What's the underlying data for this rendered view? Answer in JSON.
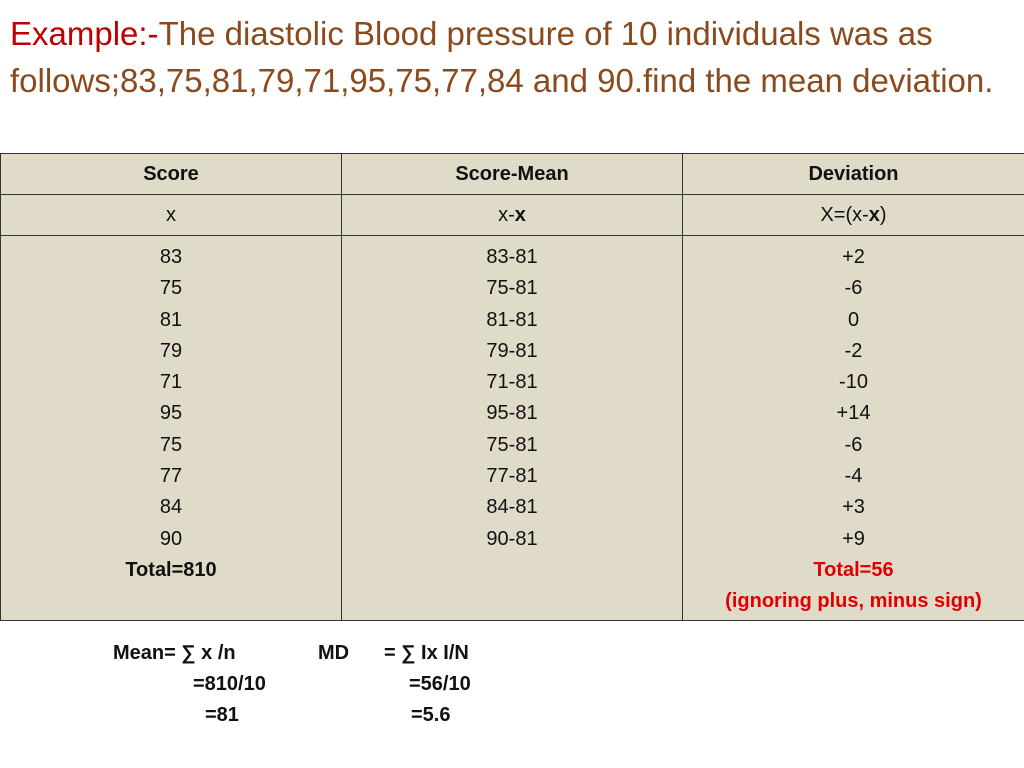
{
  "title": {
    "lead": "Example:-",
    "text": "The diastolic Blood pressure of 10 individuals was as follows;83,75,81,79,71,95,75,77,84 and 90.find the mean deviation."
  },
  "table": {
    "headers": [
      "Score",
      "Score-Mean",
      "Deviation"
    ],
    "subheaders": {
      "c1": "x",
      "c2_pre": "x-",
      "c2_bold": "x",
      "c3_pre": "X=(x-",
      "c3_bold": "x",
      "c3_post": ")"
    },
    "scores": [
      "83",
      "75",
      "81",
      "79",
      "71",
      "95",
      "75",
      "77",
      "84",
      "90"
    ],
    "score_minus_mean": [
      "83-81",
      "75-81",
      "81-81",
      "79-81",
      "71-81",
      "95-81",
      "75-81",
      "77-81",
      "84-81",
      "90-81"
    ],
    "deviations": [
      "+2",
      "-6",
      "0",
      "-2",
      "-10",
      "+14",
      "-6",
      "-4",
      "+3",
      "+9"
    ],
    "score_total": "Total=810",
    "deviation_total": "Total=56",
    "deviation_note": "(ignoring plus, minus sign)"
  },
  "formulas": {
    "mean_line1": "Mean= ∑ x /n",
    "mean_line2": "=810/10",
    "mean_line3": "=81",
    "md_label": "MD",
    "md_line1": "= ∑ Ix I/N",
    "md_line2": "=56/10",
    "md_line3": "=5.6"
  }
}
